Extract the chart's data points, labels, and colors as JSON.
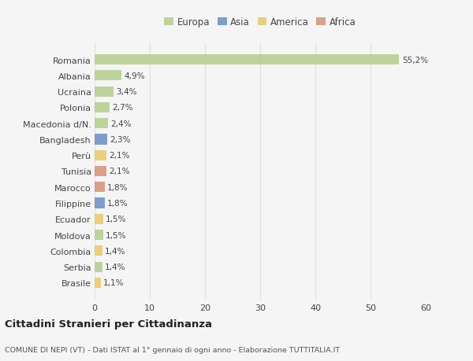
{
  "categories": [
    "Romania",
    "Albania",
    "Ucraina",
    "Polonia",
    "Macedonia d/N.",
    "Bangladesh",
    "Perù",
    "Tunisia",
    "Marocco",
    "Filippine",
    "Ecuador",
    "Moldova",
    "Colombia",
    "Serbia",
    "Brasile"
  ],
  "values": [
    55.2,
    4.9,
    3.4,
    2.7,
    2.4,
    2.3,
    2.1,
    2.1,
    1.8,
    1.8,
    1.5,
    1.5,
    1.4,
    1.4,
    1.1
  ],
  "labels": [
    "55,2%",
    "4,9%",
    "3,4%",
    "2,7%",
    "2,4%",
    "2,3%",
    "2,1%",
    "2,1%",
    "1,8%",
    "1,8%",
    "1,5%",
    "1,5%",
    "1,4%",
    "1,4%",
    "1,1%"
  ],
  "colors": [
    "#b5cc8e",
    "#b5cc8e",
    "#b5cc8e",
    "#b5cc8e",
    "#b5cc8e",
    "#6b8ebf",
    "#e8c96b",
    "#d4917a",
    "#d4917a",
    "#6b8ebf",
    "#e8c96b",
    "#b5cc8e",
    "#e8c96b",
    "#b5cc8e",
    "#e8c96b"
  ],
  "legend": [
    {
      "label": "Europa",
      "color": "#b5cc8e"
    },
    {
      "label": "Asia",
      "color": "#6b8ebf"
    },
    {
      "label": "America",
      "color": "#e8c96b"
    },
    {
      "label": "Africa",
      "color": "#d4917a"
    }
  ],
  "xlim": [
    0,
    60
  ],
  "xticks": [
    0,
    10,
    20,
    30,
    40,
    50,
    60
  ],
  "title": "Cittadini Stranieri per Cittadinanza",
  "subtitle": "COMUNE DI NEPI (VT) - Dati ISTAT al 1° gennaio di ogni anno - Elaborazione TUTTITALIA.IT",
  "bg_color": "#f5f5f5",
  "grid_color": "#e0e0e0",
  "bar_height": 0.65,
  "fig_width": 6.0,
  "fig_height": 4.6,
  "dpi": 100
}
